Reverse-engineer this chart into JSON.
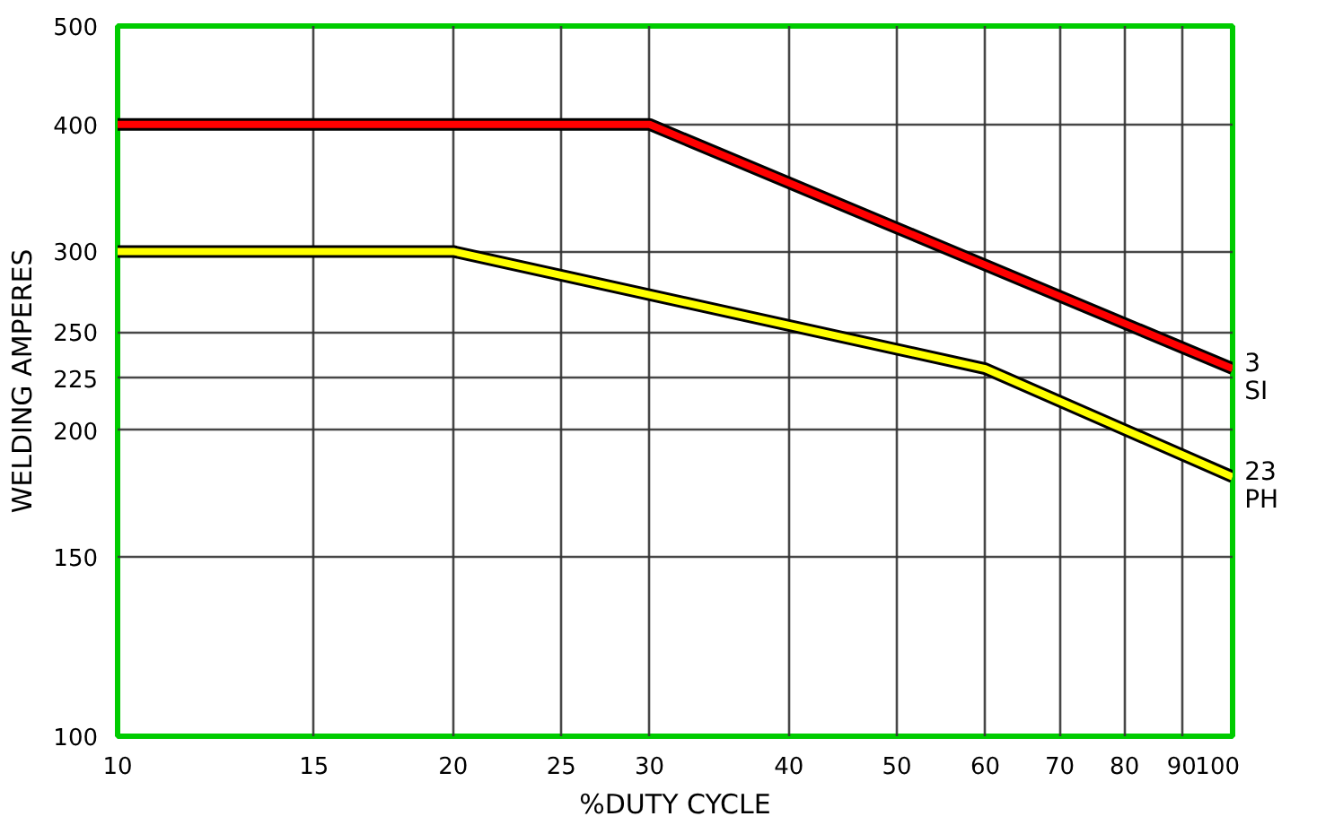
{
  "chart_data": {
    "type": "line",
    "xlabel": "%DUTY CYCLE",
    "ylabel": "WELDING AMPERES",
    "log": "xy",
    "grid": true,
    "marker": "none",
    "line_style": "solid",
    "xlim": [
      10,
      100
    ],
    "ylim": [
      100,
      500
    ],
    "xticks": [
      10,
      15,
      20,
      25,
      30,
      40,
      50,
      60,
      70,
      80,
      90,
      100
    ],
    "yticks": [
      100,
      150,
      200,
      225,
      250,
      300,
      400,
      500
    ],
    "series": [
      {
        "name": "3\nSI",
        "color": "#ff0000",
        "x": [
          10,
          30,
          100
        ],
        "values": [
          400,
          400,
          230
        ]
      },
      {
        "name": "23\nPH",
        "color": "#ffff00",
        "x": [
          10,
          20,
          60,
          100
        ],
        "values": [
          300,
          300,
          230,
          180
        ]
      }
    ]
  }
}
